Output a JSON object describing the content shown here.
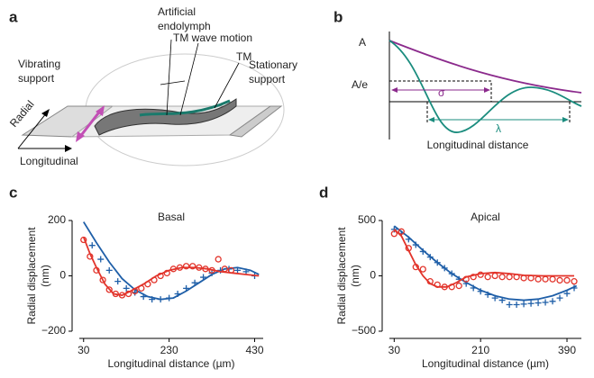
{
  "panel_a": {
    "letter": "a",
    "labels": {
      "endolymph": [
        "Artificial",
        "endolymph"
      ],
      "wave": "TM wave motion",
      "tm": "TM",
      "vibrating": [
        "Vibrating",
        "support"
      ],
      "stationary": [
        "Stationary",
        "support"
      ],
      "radial": "Radial",
      "longitudinal": "Longitudinal"
    }
  },
  "panel_b": {
    "letter": "b",
    "a_label": "A",
    "ae_label": "A/e",
    "sigma": "σ",
    "lambda": "λ",
    "xlabel": "Longitudinal distance"
  },
  "chart_data": [
    {
      "type": "line",
      "letter": "c",
      "title": "Basal",
      "xlabel": "Longitudinal distance (µm)",
      "ylabel": [
        "Radial displacement",
        "(nm)"
      ],
      "xlim": [
        20,
        450
      ],
      "xticks": [
        30,
        230,
        430
      ],
      "ylim": [
        -200,
        200
      ],
      "yticks": [
        {
          "value": -200,
          "label": "−200"
        },
        0,
        200
      ],
      "series": [
        {
          "color": "#1f5fa8",
          "style": "line",
          "x": [
            30,
            60,
            90,
            120,
            150,
            180,
            210,
            240,
            270,
            300,
            330,
            360,
            390,
            420,
            440
          ],
          "values": [
            195,
            120,
            50,
            -10,
            -50,
            -75,
            -85,
            -80,
            -55,
            -25,
            5,
            25,
            30,
            20,
            5
          ]
        },
        {
          "color": "#1f5fa8",
          "style": "cross",
          "x": [
            50,
            70,
            90,
            110,
            130,
            150,
            170,
            190,
            210,
            230,
            250,
            270,
            290,
            310,
            330,
            350,
            370,
            390,
            410,
            430
          ],
          "values": [
            110,
            60,
            20,
            -20,
            -45,
            -60,
            -75,
            -85,
            -85,
            -80,
            -65,
            -45,
            -25,
            -5,
            10,
            20,
            25,
            20,
            15,
            0
          ]
        },
        {
          "color": "#e2342b",
          "style": "line",
          "x": [
            30,
            45,
            60,
            80,
            100,
            120,
            140,
            170,
            200,
            230,
            260,
            290,
            320,
            350,
            380,
            410,
            440
          ],
          "values": [
            140,
            80,
            30,
            -30,
            -65,
            -70,
            -55,
            -30,
            0,
            20,
            30,
            30,
            25,
            15,
            10,
            5,
            0
          ]
        },
        {
          "color": "#e2342b",
          "style": "circle",
          "x": [
            30,
            45,
            60,
            75,
            90,
            105,
            120,
            135,
            150,
            165,
            180,
            195,
            210,
            225,
            240,
            255,
            270,
            285,
            300,
            315,
            330,
            345,
            360,
            375
          ],
          "values": [
            130,
            70,
            20,
            -15,
            -50,
            -65,
            -70,
            -65,
            -55,
            -45,
            -30,
            -15,
            0,
            10,
            25,
            30,
            35,
            35,
            30,
            25,
            20,
            60,
            25,
            20
          ]
        }
      ]
    },
    {
      "type": "line",
      "letter": "d",
      "title": "Apical",
      "xlabel": "Longitudinal distance (µm)",
      "ylabel": [
        "Radial displacement",
        "(nm)"
      ],
      "xlim": [
        20,
        420
      ],
      "xticks": [
        30,
        210,
        390
      ],
      "ylim": [
        -500,
        500
      ],
      "yticks": [
        {
          "value": -500,
          "label": "−500"
        },
        0,
        500
      ],
      "series": [
        {
          "color": "#1f5fa8",
          "style": "line",
          "x": [
            30,
            60,
            90,
            120,
            150,
            180,
            210,
            240,
            270,
            300,
            330,
            360,
            390,
            410
          ],
          "values": [
            450,
            350,
            230,
            120,
            20,
            -60,
            -130,
            -180,
            -210,
            -220,
            -210,
            -180,
            -130,
            -90
          ]
        },
        {
          "color": "#1f5fa8",
          "style": "cross",
          "x": [
            30,
            45,
            60,
            75,
            90,
            105,
            120,
            135,
            150,
            165,
            180,
            195,
            210,
            225,
            240,
            255,
            270,
            285,
            300,
            315,
            330,
            345,
            360,
            375,
            390,
            405
          ],
          "values": [
            420,
            380,
            330,
            280,
            220,
            170,
            120,
            70,
            20,
            -30,
            -70,
            -110,
            -140,
            -170,
            -200,
            -220,
            -260,
            -260,
            -255,
            -250,
            -245,
            -240,
            -230,
            -200,
            -160,
            -110
          ]
        },
        {
          "color": "#e2342b",
          "style": "line",
          "x": [
            30,
            45,
            60,
            75,
            90,
            105,
            120,
            140,
            160,
            180,
            210,
            240,
            270,
            300,
            340,
            380,
            405
          ],
          "values": [
            420,
            360,
            230,
            100,
            0,
            -70,
            -100,
            -100,
            -60,
            -10,
            20,
            30,
            20,
            5,
            0,
            0,
            0
          ]
        },
        {
          "color": "#e2342b",
          "style": "circle",
          "x": [
            30,
            45,
            60,
            75,
            90,
            105,
            120,
            135,
            150,
            165,
            180,
            195,
            210,
            225,
            240,
            255,
            270,
            285,
            300,
            315,
            330,
            345,
            360,
            375,
            390,
            405
          ],
          "values": [
            380,
            400,
            250,
            80,
            60,
            -50,
            -80,
            -100,
            -100,
            -90,
            -30,
            -10,
            10,
            -10,
            0,
            -10,
            -10,
            -10,
            -20,
            -20,
            -30,
            -30,
            -30,
            -40,
            -40,
            -50
          ]
        }
      ]
    }
  ]
}
